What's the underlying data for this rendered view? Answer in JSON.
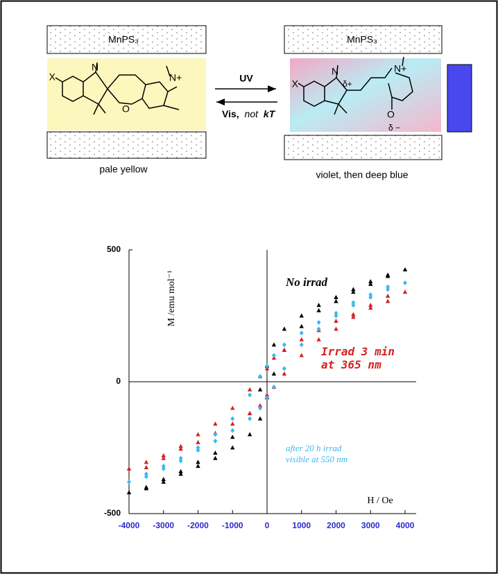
{
  "scheme": {
    "left": {
      "layer": "MnPS₃",
      "caption": "pale yellow",
      "atoms": [
        "X",
        "N",
        "O",
        "N+"
      ]
    },
    "right": {
      "layer": "MnPS₃",
      "caption": "violet, then deep blue",
      "atoms": [
        "X",
        "N",
        "δ+",
        "N+",
        "O",
        "δ −"
      ]
    },
    "arrow_top": "UV",
    "arrow_bottom": [
      "Vis,",
      "not",
      "kT"
    ]
  },
  "chart_data": {
    "type": "scatter",
    "x_label": "H / Oe",
    "y_label": "M /emu mol⁻¹",
    "xlim": [
      -4000,
      4000
    ],
    "xticks": [
      -4000,
      -3000,
      -2000,
      -1000,
      0,
      1000,
      2000,
      3000,
      4000
    ],
    "ylim": [
      -500,
      500
    ],
    "yticks": [
      -500,
      0,
      500
    ],
    "tick_label_color": "#2a2acc",
    "series": [
      {
        "name": "No irrad",
        "color": "#000000",
        "marker": "triangle",
        "x": [
          4000,
          3500,
          3000,
          2500,
          2000,
          1500,
          1000,
          500,
          200,
          0,
          -200,
          -500,
          -1000,
          -1500,
          -2000,
          -2500,
          -3000,
          -3500,
          -4000,
          -3500,
          -3000,
          -2500,
          -2000,
          -1500,
          -1000,
          -500,
          -200,
          0,
          200,
          500,
          1000,
          1500,
          2000,
          2500,
          3000,
          3500
        ],
        "values": [
          425,
          405,
          380,
          350,
          320,
          290,
          250,
          200,
          140,
          60,
          -30,
          -120,
          -210,
          -270,
          -305,
          -340,
          -370,
          -400,
          -420,
          -405,
          -380,
          -350,
          -320,
          -290,
          -250,
          -200,
          -140,
          -60,
          30,
          120,
          210,
          270,
          305,
          340,
          370,
          400
        ]
      },
      {
        "name": "Irrad 3 min at 365 nm",
        "color": "#d42020",
        "marker": "triangle",
        "x": [
          4000,
          3500,
          3000,
          2500,
          2000,
          1500,
          1000,
          500,
          200,
          0,
          -200,
          -500,
          -1000,
          -1500,
          -2000,
          -2500,
          -3000,
          -3500,
          -4000,
          -3500,
          -3000,
          -2500,
          -2000,
          -1500,
          -1000,
          -500,
          -200,
          0,
          200,
          500,
          1000,
          1500,
          2000,
          2500,
          3000,
          3500
        ],
        "values": [
          340,
          325,
          290,
          255,
          230,
          195,
          160,
          120,
          90,
          50,
          20,
          -30,
          -100,
          -160,
          -200,
          -245,
          -280,
          -305,
          -330,
          -325,
          -290,
          -255,
          -230,
          -195,
          -160,
          -120,
          -90,
          -50,
          -20,
          30,
          100,
          160,
          200,
          245,
          280,
          305
        ]
      },
      {
        "name": "after 20 h irrad visible at 550 nm",
        "color": "#3cb8ee",
        "marker": "diamond",
        "x": [
          4000,
          3500,
          3000,
          2500,
          2000,
          1500,
          1000,
          500,
          200,
          0,
          -200,
          -500,
          -1000,
          -1500,
          -2000,
          -2500,
          -3000,
          -3500,
          -4000,
          -3500,
          -3000,
          -2500,
          -2000,
          -1500,
          -1000,
          -500,
          -200,
          0,
          200,
          500,
          1000,
          1500,
          2000,
          2500,
          3000,
          3500
        ],
        "values": [
          375,
          360,
          330,
          300,
          260,
          225,
          185,
          140,
          100,
          60,
          20,
          -50,
          -140,
          -200,
          -250,
          -290,
          -320,
          -350,
          -380,
          -360,
          -330,
          -300,
          -260,
          -225,
          -185,
          -140,
          -100,
          -60,
          -20,
          50,
          140,
          200,
          250,
          290,
          320,
          350
        ]
      }
    ]
  }
}
